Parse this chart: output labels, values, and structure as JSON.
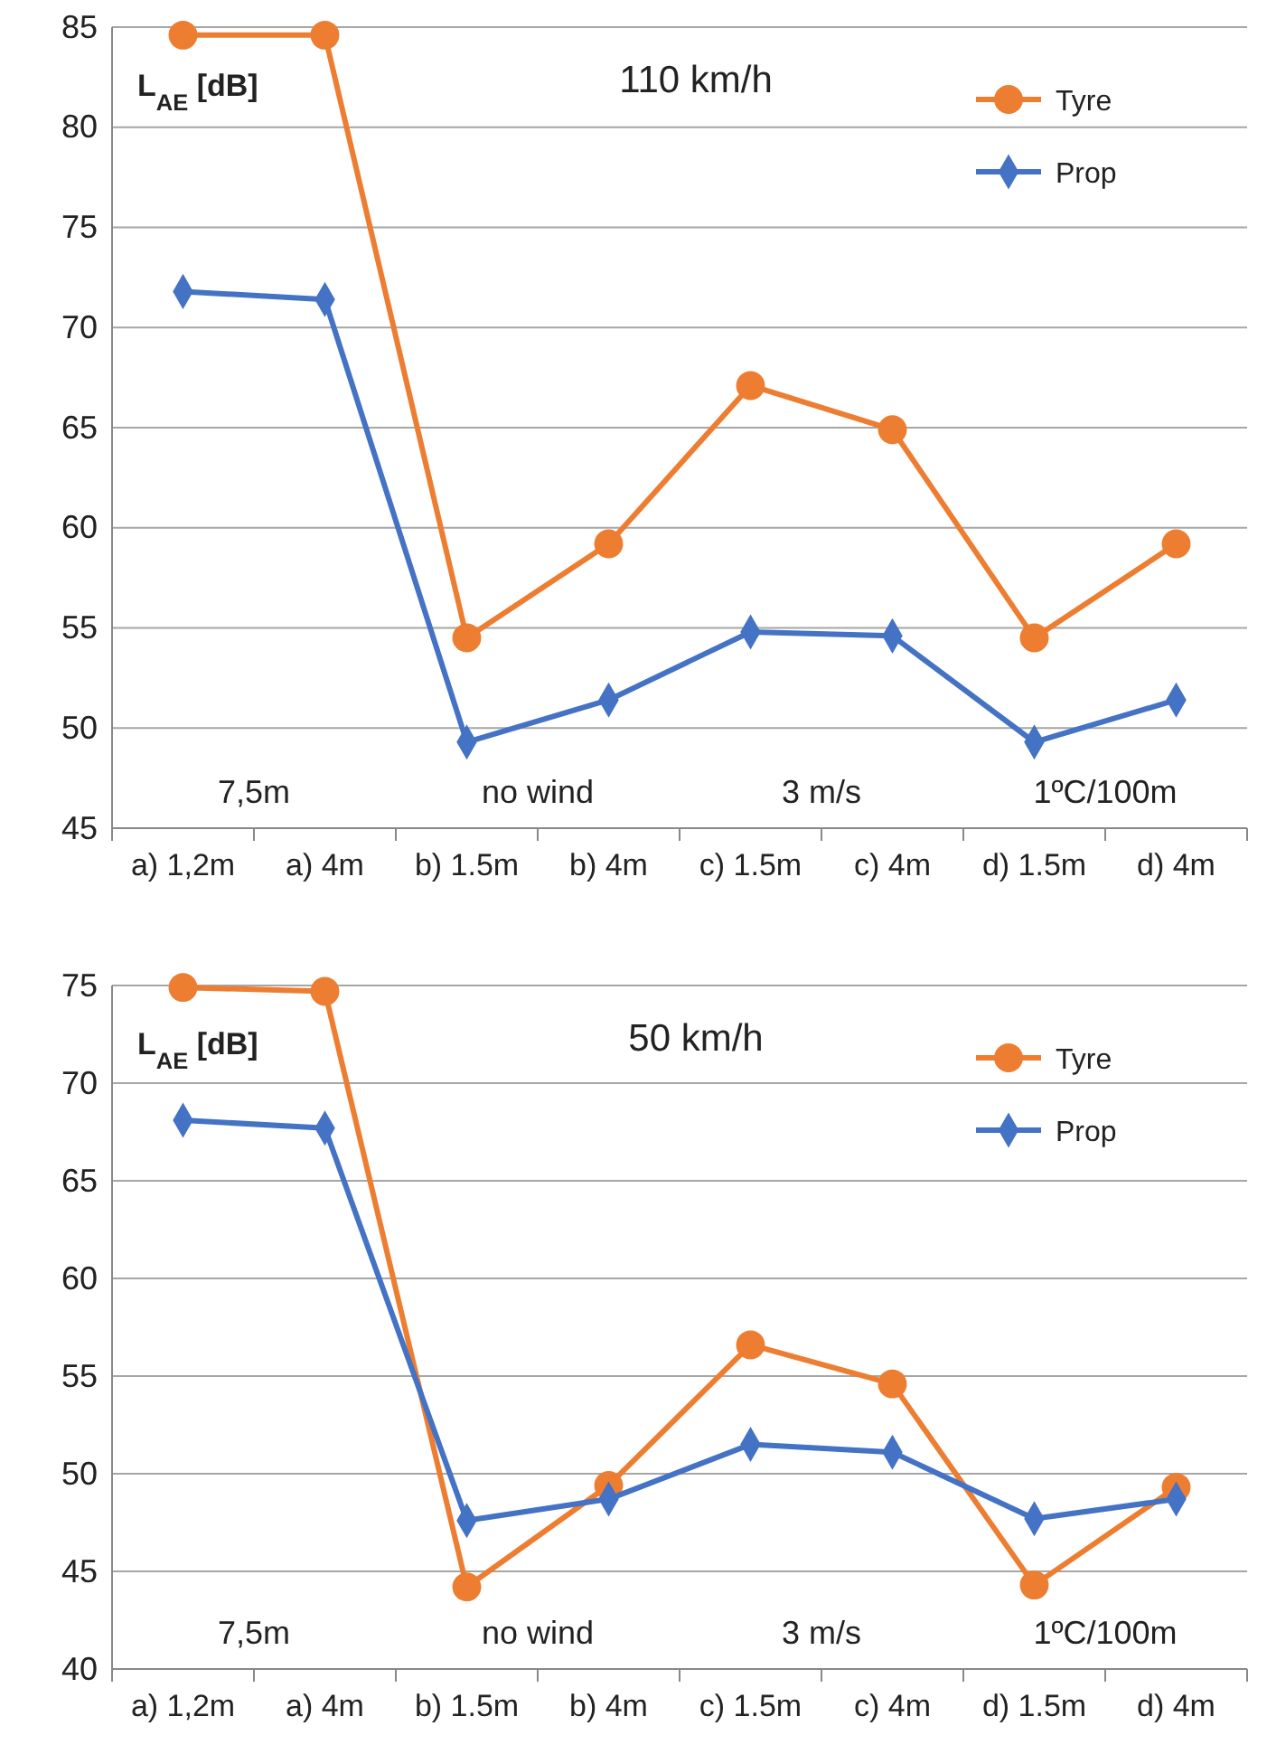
{
  "chart_data": [
    {
      "type": "line",
      "title": "110 km/h",
      "categories": [
        "a) 1,2m",
        "a) 4m",
        "b) 1.5m",
        "b) 4m",
        "c) 1.5m",
        "c) 4m",
        "d) 1.5m",
        "d) 4m"
      ],
      "series": [
        {
          "name": "Tyre",
          "color": "#ed7d31",
          "marker": "circle",
          "values": [
            84.6,
            84.6,
            54.5,
            59.2,
            67.1,
            64.9,
            54.5,
            59.2
          ]
        },
        {
          "name": "Prop",
          "color": "#4472c4",
          "marker": "diamond",
          "values": [
            71.8,
            71.4,
            49.3,
            51.4,
            54.8,
            54.6,
            49.3,
            51.4
          ]
        }
      ],
      "ylim": [
        45,
        85
      ],
      "yticks": [
        45,
        50,
        55,
        60,
        65,
        70,
        75,
        80,
        85
      ],
      "grid": "y",
      "legend": "top right",
      "annotations": [
        "L$_{AE}$ [dB]",
        "7,5m",
        "no wind",
        "3 m/s",
        "1ºC/100m"
      ]
    },
    {
      "type": "line",
      "title": "50 km/h",
      "categories": [
        "a) 1,2m",
        "a) 4m",
        "b) 1.5m",
        "b) 4m",
        "c) 1.5m",
        "c) 4m",
        "d) 1.5m",
        "d) 4m"
      ],
      "series": [
        {
          "name": "Tyre",
          "color": "#ed7d31",
          "marker": "circle",
          "values": [
            74.9,
            74.7,
            44.2,
            49.4,
            56.6,
            54.6,
            44.3,
            49.3
          ]
        },
        {
          "name": "Prop",
          "color": "#4472c4",
          "marker": "diamond",
          "values": [
            68.1,
            67.7,
            47.6,
            48.7,
            51.5,
            51.1,
            47.7,
            48.7
          ]
        }
      ],
      "ylim": [
        40,
        75
      ],
      "yticks": [
        40,
        45,
        50,
        55,
        60,
        65,
        70,
        75
      ],
      "grid": "y",
      "legend": "top right",
      "annotations": [
        "L$_{AE}$ [dB]",
        "7,5m",
        "no wind",
        "3 m/s",
        "1ºC/100m"
      ]
    }
  ]
}
